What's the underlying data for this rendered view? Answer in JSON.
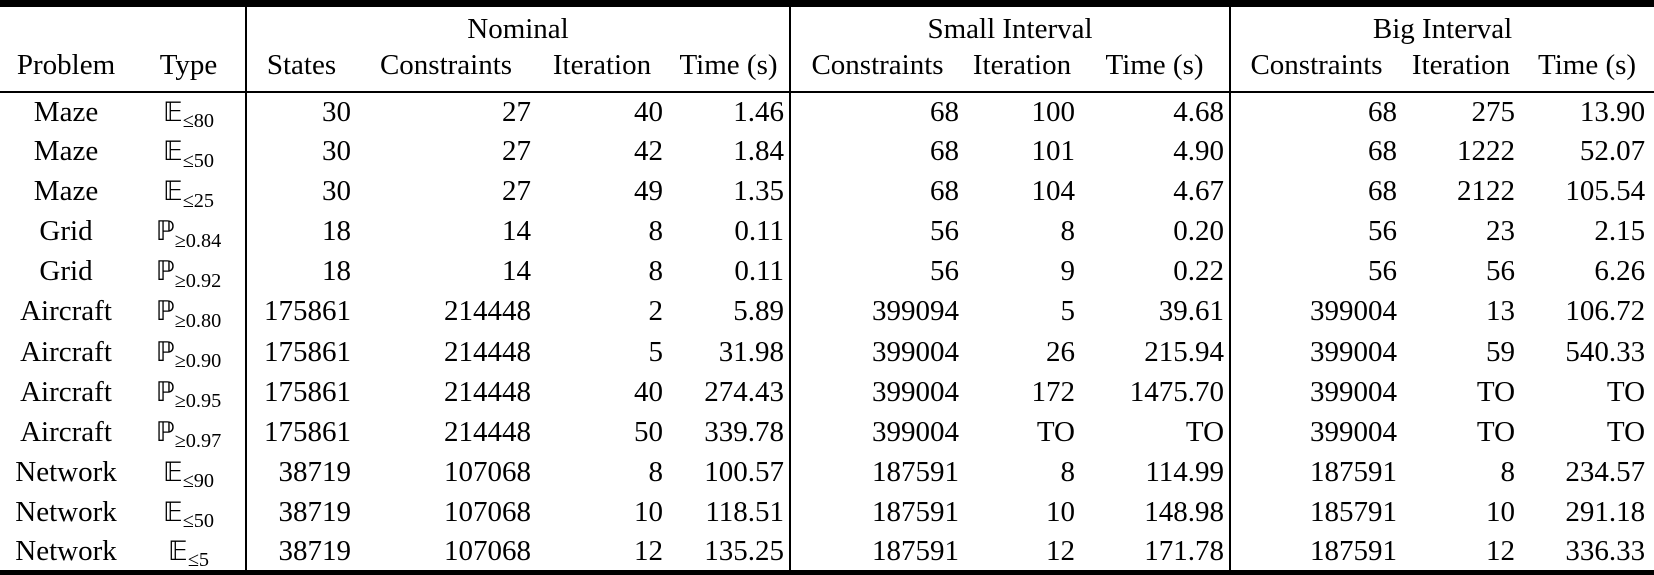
{
  "table": {
    "groups": {
      "nominal": "Nominal",
      "small": "Small Interval",
      "big": "Big Interval"
    },
    "columns": {
      "problem": "Problem",
      "type": "Type",
      "states": "States",
      "constraints": "Constraints",
      "iteration": "Iteration",
      "time": "Time (s)"
    },
    "rows": [
      {
        "problem": "Maze",
        "type_symbol": "𝔼",
        "type_sub": "≤80",
        "nominal": [
          "30",
          "27",
          "40",
          "1.46"
        ],
        "small": [
          "68",
          "100",
          "4.68"
        ],
        "big": [
          "68",
          "275",
          "13.90"
        ]
      },
      {
        "problem": "Maze",
        "type_symbol": "𝔼",
        "type_sub": "≤50",
        "nominal": [
          "30",
          "27",
          "42",
          "1.84"
        ],
        "small": [
          "68",
          "101",
          "4.90"
        ],
        "big": [
          "68",
          "1222",
          "52.07"
        ]
      },
      {
        "problem": "Maze",
        "type_symbol": "𝔼",
        "type_sub": "≤25",
        "nominal": [
          "30",
          "27",
          "49",
          "1.35"
        ],
        "small": [
          "68",
          "104",
          "4.67"
        ],
        "big": [
          "68",
          "2122",
          "105.54"
        ]
      },
      {
        "problem": "Grid",
        "type_symbol": "ℙ",
        "type_sub": "≥0.84",
        "nominal": [
          "18",
          "14",
          "8",
          "0.11"
        ],
        "small": [
          "56",
          "8",
          "0.20"
        ],
        "big": [
          "56",
          "23",
          "2.15"
        ]
      },
      {
        "problem": "Grid",
        "type_symbol": "ℙ",
        "type_sub": "≥0.92",
        "nominal": [
          "18",
          "14",
          "8",
          "0.11"
        ],
        "small": [
          "56",
          "9",
          "0.22"
        ],
        "big": [
          "56",
          "56",
          "6.26"
        ]
      },
      {
        "problem": "Aircraft",
        "type_symbol": "ℙ",
        "type_sub": "≥0.80",
        "nominal": [
          "175861",
          "214448",
          "2",
          "5.89"
        ],
        "small": [
          "399094",
          "5",
          "39.61"
        ],
        "big": [
          "399004",
          "13",
          "106.72"
        ]
      },
      {
        "problem": "Aircraft",
        "type_symbol": "ℙ",
        "type_sub": "≥0.90",
        "nominal": [
          "175861",
          "214448",
          "5",
          "31.98"
        ],
        "small": [
          "399004",
          "26",
          "215.94"
        ],
        "big": [
          "399004",
          "59",
          "540.33"
        ]
      },
      {
        "problem": "Aircraft",
        "type_symbol": "ℙ",
        "type_sub": "≥0.95",
        "nominal": [
          "175861",
          "214448",
          "40",
          "274.43"
        ],
        "small": [
          "399004",
          "172",
          "1475.70"
        ],
        "big": [
          "399004",
          "TO",
          "TO"
        ]
      },
      {
        "problem": "Aircraft",
        "type_symbol": "ℙ",
        "type_sub": "≥0.97",
        "nominal": [
          "175861",
          "214448",
          "50",
          "339.78"
        ],
        "small": [
          "399004",
          "TO",
          "TO"
        ],
        "big": [
          "399004",
          "TO",
          "TO"
        ]
      },
      {
        "problem": "Network",
        "type_symbol": "𝔼",
        "type_sub": "≤90",
        "nominal": [
          "38719",
          "107068",
          "8",
          "100.57"
        ],
        "small": [
          "187591",
          "8",
          "114.99"
        ],
        "big": [
          "187591",
          "8",
          "234.57"
        ]
      },
      {
        "problem": "Network",
        "type_symbol": "𝔼",
        "type_sub": "≤50",
        "nominal": [
          "38719",
          "107068",
          "10",
          "118.51"
        ],
        "small": [
          "187591",
          "10",
          "148.98"
        ],
        "big": [
          "185791",
          "10",
          "291.18"
        ]
      },
      {
        "problem": "Network",
        "type_symbol": "𝔼",
        "type_sub": "≤5",
        "nominal": [
          "38719",
          "107068",
          "12",
          "135.25"
        ],
        "small": [
          "187591",
          "12",
          "171.78"
        ],
        "big": [
          "187591",
          "12",
          "336.33"
        ]
      }
    ]
  }
}
